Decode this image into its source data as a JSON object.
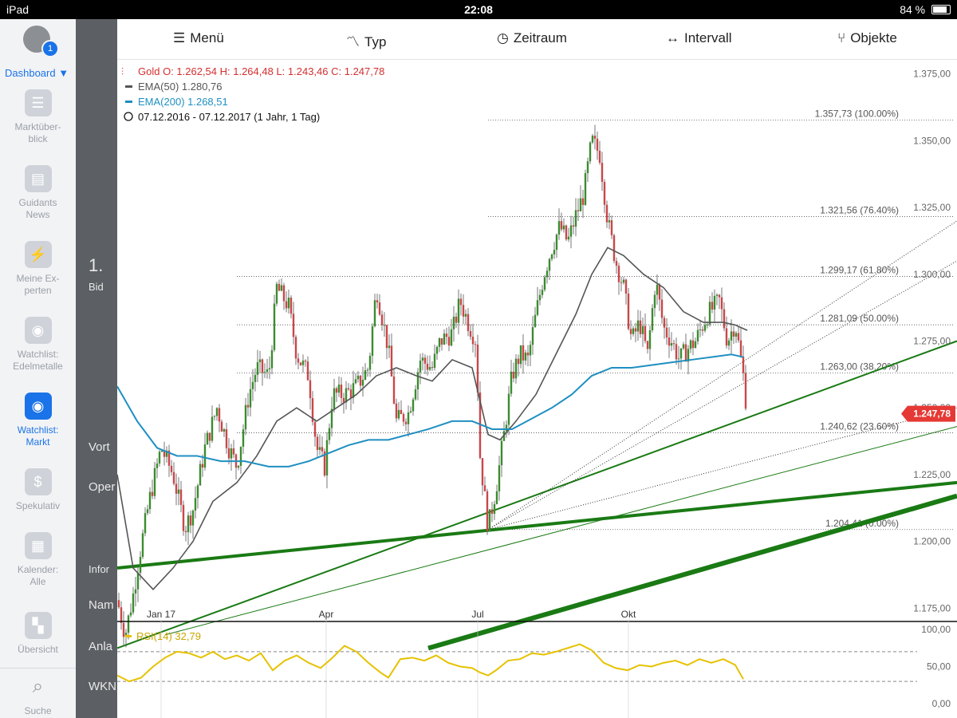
{
  "status_bar": {
    "device": "iPad",
    "time": "22:08",
    "battery": "84 %"
  },
  "sidebar": {
    "badge": "1",
    "dashboard_label": "Dashboard ▼",
    "items": [
      {
        "label": "Marktüber-\nblick",
        "icon": "list-icon"
      },
      {
        "label": "Guidants\nNews",
        "icon": "news-icon"
      },
      {
        "label": "Meine Ex-\nperten",
        "icon": "lightning-icon"
      },
      {
        "label": "Watchlist:\nEdelmetalle",
        "icon": "eye-icon"
      },
      {
        "label": "Watchlist:\nMarkt",
        "icon": "eye-icon",
        "active": true
      },
      {
        "label": "Spekulativ",
        "icon": "dollar-icon"
      },
      {
        "label": "Kalender:\nAlle",
        "icon": "calendar-icon"
      },
      {
        "label": "Übersicht",
        "icon": "grid-icon"
      },
      {
        "label": "Suche",
        "icon": "search-icon"
      }
    ]
  },
  "background_panel": {
    "texts": [
      "1.",
      "Bid",
      "Vort",
      "Oper",
      "Infor",
      "Nam",
      "Anla",
      "WKN"
    ]
  },
  "toolbar": {
    "menu": "Menü",
    "type": "Typ",
    "range": "Zeitraum",
    "interval": "Intervall",
    "objects": "Objekte"
  },
  "legend": {
    "gold": "Gold  O: 1.262,54  H: 1.264,48  L: 1.243,46  C: 1.247,78",
    "ema50": "EMA(50)  1.280,76",
    "ema200": "EMA(200)  1.268,51",
    "period": "07.12.2016 - 07.12.2017    (1 Jahr, 1 Tag)"
  },
  "colors": {
    "red": "#d32f2f",
    "ema50": "#555555",
    "ema200": "#1f8fc1",
    "green": "#1a7a14",
    "rsi": "#e6c200",
    "accent": "#1a73e8"
  },
  "chart_data": {
    "type": "candlestick",
    "ylim": [
      1170,
      1380
    ],
    "yticks": [
      "1.375,00",
      "1.350,00",
      "1.325,00",
      "1.300,00",
      "1.275,00",
      "1.250,00",
      "1.225,00",
      "1.200,00",
      "1.175,00"
    ],
    "xticks": [
      "Jan 17",
      "Apr",
      "Jul",
      "Okt"
    ],
    "last_price": "1.247,78",
    "fibonacci": [
      {
        "label": "1.357,73 (100.00%)",
        "value": 1357.73
      },
      {
        "label": "1.321,56 (76.40%)",
        "value": 1321.56
      },
      {
        "label": "1.299,17 (61.80%)",
        "value": 1299.17
      },
      {
        "label": "1.281,09 (50.00%)",
        "value": 1281.09
      },
      {
        "label": "1.263,00 (38.20%)",
        "value": 1263.0
      },
      {
        "label": "1.240,62 (23.60%)",
        "value": 1240.62
      },
      {
        "label": "1.204,41 (0.00%)",
        "value": 1204.41
      }
    ],
    "price_path": [
      [
        0,
        1178
      ],
      [
        10,
        1165
      ],
      [
        20,
        1180
      ],
      [
        28,
        1195
      ],
      [
        40,
        1215
      ],
      [
        55,
        1235
      ],
      [
        70,
        1225
      ],
      [
        85,
        1205
      ],
      [
        95,
        1212
      ],
      [
        110,
        1235
      ],
      [
        125,
        1250
      ],
      [
        140,
        1235
      ],
      [
        150,
        1228
      ],
      [
        165,
        1255
      ],
      [
        175,
        1265
      ],
      [
        190,
        1262
      ],
      [
        200,
        1295
      ],
      [
        215,
        1288
      ],
      [
        225,
        1270
      ],
      [
        240,
        1262
      ],
      [
        250,
        1235
      ],
      [
        260,
        1228
      ],
      [
        270,
        1255
      ],
      [
        285,
        1255
      ],
      [
        300,
        1258
      ],
      [
        315,
        1265
      ],
      [
        325,
        1295
      ],
      [
        340,
        1272
      ],
      [
        350,
        1245
      ],
      [
        365,
        1248
      ],
      [
        380,
        1268
      ],
      [
        395,
        1265
      ],
      [
        405,
        1275
      ],
      [
        420,
        1278
      ],
      [
        430,
        1290
      ],
      [
        440,
        1282
      ],
      [
        450,
        1275
      ],
      [
        455,
        1232
      ],
      [
        465,
        1205
      ],
      [
        475,
        1220
      ],
      [
        485,
        1240
      ],
      [
        495,
        1262
      ],
      [
        505,
        1270
      ],
      [
        515,
        1268
      ],
      [
        525,
        1285
      ],
      [
        535,
        1300
      ],
      [
        545,
        1310
      ],
      [
        555,
        1318
      ],
      [
        565,
        1312
      ],
      [
        575,
        1322
      ],
      [
        585,
        1330
      ],
      [
        595,
        1350
      ],
      [
        605,
        1345
      ],
      [
        615,
        1320
      ],
      [
        625,
        1305
      ],
      [
        635,
        1295
      ],
      [
        645,
        1275
      ],
      [
        655,
        1282
      ],
      [
        665,
        1270
      ],
      [
        675,
        1298
      ],
      [
        685,
        1280
      ],
      [
        695,
        1275
      ],
      [
        705,
        1268
      ],
      [
        715,
        1272
      ],
      [
        725,
        1275
      ],
      [
        740,
        1285
      ],
      [
        755,
        1290
      ],
      [
        765,
        1275
      ],
      [
        775,
        1282
      ],
      [
        785,
        1262
      ],
      [
        790,
        1247.78
      ]
    ],
    "ema50": [
      [
        0,
        1225
      ],
      [
        20,
        1190
      ],
      [
        45,
        1182
      ],
      [
        70,
        1190
      ],
      [
        95,
        1200
      ],
      [
        120,
        1215
      ],
      [
        150,
        1222
      ],
      [
        175,
        1232
      ],
      [
        200,
        1245
      ],
      [
        225,
        1250
      ],
      [
        250,
        1245
      ],
      [
        275,
        1250
      ],
      [
        300,
        1255
      ],
      [
        325,
        1262
      ],
      [
        350,
        1265
      ],
      [
        375,
        1262
      ],
      [
        395,
        1260
      ],
      [
        420,
        1268
      ],
      [
        445,
        1265
      ],
      [
        465,
        1240
      ],
      [
        480,
        1238
      ],
      [
        500,
        1245
      ],
      [
        525,
        1255
      ],
      [
        550,
        1270
      ],
      [
        575,
        1285
      ],
      [
        595,
        1300
      ],
      [
        615,
        1310
      ],
      [
        635,
        1307
      ],
      [
        660,
        1300
      ],
      [
        685,
        1295
      ],
      [
        710,
        1286
      ],
      [
        735,
        1282
      ],
      [
        760,
        1282
      ],
      [
        775,
        1281
      ],
      [
        790,
        1279
      ]
    ],
    "ema200": [
      [
        0,
        1258
      ],
      [
        25,
        1245
      ],
      [
        50,
        1235
      ],
      [
        75,
        1232
      ],
      [
        100,
        1232
      ],
      [
        130,
        1230
      ],
      [
        160,
        1230
      ],
      [
        190,
        1228
      ],
      [
        215,
        1228
      ],
      [
        240,
        1230
      ],
      [
        265,
        1233
      ],
      [
        290,
        1236
      ],
      [
        315,
        1238
      ],
      [
        340,
        1238
      ],
      [
        365,
        1240
      ],
      [
        390,
        1242
      ],
      [
        420,
        1245
      ],
      [
        445,
        1245
      ],
      [
        470,
        1242
      ],
      [
        495,
        1242
      ],
      [
        520,
        1246
      ],
      [
        545,
        1250
      ],
      [
        570,
        1255
      ],
      [
        595,
        1262
      ],
      [
        620,
        1265
      ],
      [
        645,
        1265
      ],
      [
        670,
        1266
      ],
      [
        695,
        1267
      ],
      [
        720,
        1268
      ],
      [
        745,
        1269
      ],
      [
        770,
        1270
      ],
      [
        785,
        1269
      ]
    ],
    "trendlines": [
      {
        "p1": [
          0,
          1190
        ],
        "p2": [
          1053,
          1222
        ],
        "width": 4
      },
      {
        "p1": [
          0,
          1160
        ],
        "p2": [
          1053,
          1275
        ],
        "width": 2
      },
      {
        "p1": [
          390,
          1160
        ],
        "p2": [
          1053,
          1217
        ],
        "width": 6
      },
      {
        "p1": [
          60,
          1165
        ],
        "p2": [
          1053,
          1243
        ],
        "width": 1
      },
      {
        "p1": [
          465,
          1204.41
        ],
        "p2": [
          1053,
          1320
        ],
        "width": 1,
        "dashed": true
      },
      {
        "p1": [
          465,
          1204.41
        ],
        "p2": [
          1053,
          1305
        ],
        "width": 1,
        "dashed": true
      },
      {
        "p1": [
          465,
          1204.41
        ],
        "p2": [
          1053,
          1250
        ],
        "width": 1,
        "dashed": true
      }
    ],
    "rsi": {
      "label": "RSI(14)  32,79",
      "yticks": [
        "100,00",
        "50,00",
        "0,00"
      ],
      "values": [
        [
          0,
          38
        ],
        [
          15,
          30
        ],
        [
          30,
          35
        ],
        [
          45,
          50
        ],
        [
          60,
          62
        ],
        [
          75,
          70
        ],
        [
          90,
          68
        ],
        [
          105,
          62
        ],
        [
          120,
          70
        ],
        [
          135,
          60
        ],
        [
          150,
          65
        ],
        [
          165,
          58
        ],
        [
          180,
          68
        ],
        [
          195,
          45
        ],
        [
          210,
          58
        ],
        [
          225,
          65
        ],
        [
          240,
          55
        ],
        [
          255,
          48
        ],
        [
          270,
          62
        ],
        [
          285,
          78
        ],
        [
          300,
          70
        ],
        [
          315,
          55
        ],
        [
          330,
          42
        ],
        [
          340,
          35
        ],
        [
          355,
          60
        ],
        [
          370,
          62
        ],
        [
          385,
          58
        ],
        [
          400,
          65
        ],
        [
          415,
          55
        ],
        [
          430,
          50
        ],
        [
          445,
          48
        ],
        [
          455,
          42
        ],
        [
          465,
          38
        ],
        [
          475,
          45
        ],
        [
          490,
          58
        ],
        [
          505,
          60
        ],
        [
          520,
          68
        ],
        [
          535,
          66
        ],
        [
          550,
          70
        ],
        [
          565,
          75
        ],
        [
          580,
          80
        ],
        [
          595,
          72
        ],
        [
          610,
          55
        ],
        [
          625,
          48
        ],
        [
          640,
          45
        ],
        [
          655,
          52
        ],
        [
          670,
          50
        ],
        [
          685,
          55
        ],
        [
          700,
          58
        ],
        [
          715,
          52
        ],
        [
          730,
          60
        ],
        [
          745,
          55
        ],
        [
          760,
          60
        ],
        [
          775,
          52
        ],
        [
          785,
          33
        ]
      ]
    }
  }
}
